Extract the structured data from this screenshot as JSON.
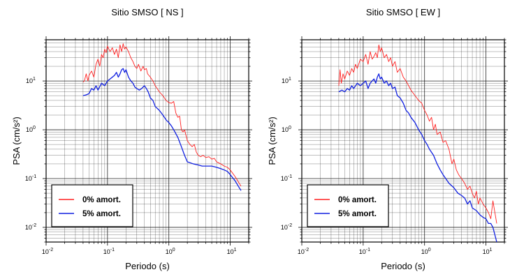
{
  "chart_data": [
    {
      "type": "line",
      "title": "Sitio SMSO [ NS ]",
      "xlabel": "Periodo (s)",
      "ylabel": "PSA (cm/s²)",
      "xscale": "log",
      "yscale": "log",
      "xlim": [
        0.01,
        20
      ],
      "ylim": [
        0.005,
        70
      ],
      "xticks": [
        0.01,
        0.1,
        1,
        10
      ],
      "yticks": [
        0.01,
        0.1,
        1,
        10
      ],
      "grid": true,
      "legend_position": "bottom-left",
      "series": [
        {
          "name": "0% amort.",
          "color": "#ff2020",
          "points": [
            [
              0.04,
              9.5
            ],
            [
              0.042,
              10
            ],
            [
              0.045,
              14
            ],
            [
              0.048,
              10
            ],
            [
              0.05,
              13
            ],
            [
              0.055,
              16
            ],
            [
              0.06,
              12
            ],
            [
              0.065,
              22
            ],
            [
              0.07,
              28
            ],
            [
              0.075,
              20
            ],
            [
              0.08,
              35
            ],
            [
              0.085,
              30
            ],
            [
              0.09,
              45
            ],
            [
              0.095,
              38
            ],
            [
              0.1,
              52
            ],
            [
              0.11,
              40
            ],
            [
              0.12,
              48
            ],
            [
              0.13,
              35
            ],
            [
              0.14,
              45
            ],
            [
              0.15,
              30
            ],
            [
              0.16,
              55
            ],
            [
              0.17,
              40
            ],
            [
              0.18,
              58
            ],
            [
              0.19,
              45
            ],
            [
              0.2,
              50
            ],
            [
              0.22,
              40
            ],
            [
              0.24,
              30
            ],
            [
              0.26,
              25
            ],
            [
              0.28,
              20
            ],
            [
              0.3,
              18
            ],
            [
              0.32,
              22
            ],
            [
              0.35,
              16
            ],
            [
              0.38,
              20
            ],
            [
              0.4,
              17
            ],
            [
              0.43,
              18
            ],
            [
              0.45,
              14
            ],
            [
              0.5,
              12
            ],
            [
              0.55,
              10
            ],
            [
              0.6,
              8
            ],
            [
              0.7,
              6
            ],
            [
              0.8,
              5
            ],
            [
              0.9,
              4
            ],
            [
              1.0,
              3.6
            ],
            [
              1.1,
              3.5
            ],
            [
              1.2,
              3.8
            ],
            [
              1.3,
              2.2
            ],
            [
              1.4,
              1.8
            ],
            [
              1.5,
              1.9
            ],
            [
              1.6,
              1.0
            ],
            [
              1.7,
              0.9
            ],
            [
              1.8,
              1.0
            ],
            [
              2.0,
              0.6
            ],
            [
              2.2,
              0.5
            ],
            [
              2.4,
              0.45
            ],
            [
              2.6,
              0.5
            ],
            [
              2.8,
              0.35
            ],
            [
              3.0,
              0.3
            ],
            [
              3.3,
              0.28
            ],
            [
              3.6,
              0.3
            ],
            [
              4.0,
              0.27
            ],
            [
              4.5,
              0.28
            ],
            [
              5.0,
              0.25
            ],
            [
              5.5,
              0.26
            ],
            [
              6.0,
              0.22
            ],
            [
              7.0,
              0.2
            ],
            [
              8.0,
              0.18
            ],
            [
              9.0,
              0.17
            ],
            [
              10.0,
              0.15
            ],
            [
              12.0,
              0.11
            ],
            [
              14.0,
              0.08
            ],
            [
              15.0,
              0.07
            ]
          ]
        },
        {
          "name": "5% amort.",
          "color": "#1020e0",
          "points": [
            [
              0.04,
              5
            ],
            [
              0.045,
              5.2
            ],
            [
              0.05,
              5.5
            ],
            [
              0.055,
              7
            ],
            [
              0.06,
              6.5
            ],
            [
              0.065,
              8
            ],
            [
              0.07,
              6.5
            ],
            [
              0.08,
              9
            ],
            [
              0.09,
              8
            ],
            [
              0.1,
              10
            ],
            [
              0.11,
              11
            ],
            [
              0.12,
              12
            ],
            [
              0.13,
              13
            ],
            [
              0.14,
              15
            ],
            [
              0.15,
              12
            ],
            [
              0.16,
              14
            ],
            [
              0.17,
              17
            ],
            [
              0.18,
              18
            ],
            [
              0.19,
              15
            ],
            [
              0.2,
              17
            ],
            [
              0.22,
              12
            ],
            [
              0.24,
              10
            ],
            [
              0.26,
              9
            ],
            [
              0.28,
              7.5
            ],
            [
              0.3,
              7
            ],
            [
              0.33,
              6.5
            ],
            [
              0.36,
              7
            ],
            [
              0.4,
              8
            ],
            [
              0.43,
              7
            ],
            [
              0.46,
              6
            ],
            [
              0.5,
              4.5
            ],
            [
              0.55,
              4
            ],
            [
              0.6,
              3
            ],
            [
              0.7,
              2.5
            ],
            [
              0.8,
              2
            ],
            [
              0.9,
              1.6
            ],
            [
              1.0,
              1.4
            ],
            [
              1.1,
              1.2
            ],
            [
              1.2,
              1.0
            ],
            [
              1.4,
              0.7
            ],
            [
              1.6,
              0.45
            ],
            [
              1.8,
              0.3
            ],
            [
              2.0,
              0.22
            ],
            [
              2.5,
              0.2
            ],
            [
              3.0,
              0.19
            ],
            [
              3.5,
              0.18
            ],
            [
              4.0,
              0.18
            ],
            [
              5.0,
              0.18
            ],
            [
              6.0,
              0.17
            ],
            [
              7.0,
              0.16
            ],
            [
              8.0,
              0.15
            ],
            [
              9.0,
              0.14
            ],
            [
              10.0,
              0.12
            ],
            [
              12.0,
              0.09
            ],
            [
              14.0,
              0.065
            ],
            [
              15.0,
              0.057
            ]
          ]
        }
      ]
    },
    {
      "type": "line",
      "title": "Sitio SMSO [ EW ]",
      "xlabel": "Periodo (s)",
      "ylabel": "PSA (cm/s²)",
      "xscale": "log",
      "yscale": "log",
      "xlim": [
        0.01,
        20
      ],
      "ylim": [
        0.005,
        70
      ],
      "xticks": [
        0.01,
        0.1,
        1,
        10
      ],
      "yticks": [
        0.01,
        0.1,
        1,
        10
      ],
      "grid": true,
      "legend_position": "bottom-left",
      "series": [
        {
          "name": "0% amort.",
          "color": "#ff2020",
          "points": [
            [
              0.04,
              8
            ],
            [
              0.042,
              17
            ],
            [
              0.044,
              9
            ],
            [
              0.047,
              14
            ],
            [
              0.05,
              11
            ],
            [
              0.055,
              16
            ],
            [
              0.06,
              13
            ],
            [
              0.065,
              18
            ],
            [
              0.07,
              15
            ],
            [
              0.075,
              22
            ],
            [
              0.08,
              18
            ],
            [
              0.09,
              28
            ],
            [
              0.1,
              25
            ],
            [
              0.11,
              35
            ],
            [
              0.12,
              22
            ],
            [
              0.13,
              40
            ],
            [
              0.14,
              28
            ],
            [
              0.15,
              32
            ],
            [
              0.16,
              38
            ],
            [
              0.17,
              30
            ],
            [
              0.18,
              55
            ],
            [
              0.19,
              40
            ],
            [
              0.2,
              48
            ],
            [
              0.22,
              30
            ],
            [
              0.24,
              35
            ],
            [
              0.26,
              25
            ],
            [
              0.28,
              30
            ],
            [
              0.3,
              20
            ],
            [
              0.33,
              25
            ],
            [
              0.36,
              15
            ],
            [
              0.4,
              18
            ],
            [
              0.45,
              12
            ],
            [
              0.5,
              10
            ],
            [
              0.55,
              8
            ],
            [
              0.6,
              6.5
            ],
            [
              0.7,
              5
            ],
            [
              0.8,
              4
            ],
            [
              0.9,
              3.5
            ],
            [
              1.0,
              2.5
            ],
            [
              1.1,
              2.0
            ],
            [
              1.2,
              1.5
            ],
            [
              1.3,
              1.8
            ],
            [
              1.4,
              1.0
            ],
            [
              1.5,
              1.3
            ],
            [
              1.6,
              0.8
            ],
            [
              1.8,
              0.9
            ],
            [
              2.0,
              0.55
            ],
            [
              2.2,
              0.6
            ],
            [
              2.5,
              0.4
            ],
            [
              2.8,
              0.2
            ],
            [
              3.0,
              0.25
            ],
            [
              3.3,
              0.15
            ],
            [
              3.6,
              0.12
            ],
            [
              4.0,
              0.1
            ],
            [
              4.5,
              0.08
            ],
            [
              5.0,
              0.06
            ],
            [
              5.5,
              0.07
            ],
            [
              6.0,
              0.05
            ],
            [
              6.5,
              0.04
            ],
            [
              7.0,
              0.055
            ],
            [
              7.5,
              0.03
            ],
            [
              8.0,
              0.04
            ],
            [
              9.0,
              0.03
            ],
            [
              10.0,
              0.025
            ],
            [
              11.0,
              0.02
            ],
            [
              12.0,
              0.015
            ],
            [
              13.0,
              0.035
            ],
            [
              14.0,
              0.02
            ],
            [
              15.0,
              0.012
            ]
          ]
        },
        {
          "name": "5% amort.",
          "color": "#1020e0",
          "points": [
            [
              0.04,
              6
            ],
            [
              0.045,
              6.5
            ],
            [
              0.05,
              6
            ],
            [
              0.055,
              7
            ],
            [
              0.06,
              6.5
            ],
            [
              0.065,
              8
            ],
            [
              0.07,
              7
            ],
            [
              0.08,
              9
            ],
            [
              0.09,
              8
            ],
            [
              0.1,
              9
            ],
            [
              0.11,
              10
            ],
            [
              0.12,
              7
            ],
            [
              0.13,
              9
            ],
            [
              0.14,
              10
            ],
            [
              0.15,
              11
            ],
            [
              0.16,
              9
            ],
            [
              0.17,
              12
            ],
            [
              0.18,
              14
            ],
            [
              0.19,
              11
            ],
            [
              0.2,
              12
            ],
            [
              0.22,
              9
            ],
            [
              0.24,
              10
            ],
            [
              0.26,
              8
            ],
            [
              0.28,
              9
            ],
            [
              0.3,
              7
            ],
            [
              0.33,
              7.5
            ],
            [
              0.36,
              5
            ],
            [
              0.4,
              4.5
            ],
            [
              0.45,
              3.5
            ],
            [
              0.5,
              2.5
            ],
            [
              0.55,
              2.2
            ],
            [
              0.6,
              1.8
            ],
            [
              0.7,
              1.4
            ],
            [
              0.8,
              1.0
            ],
            [
              0.9,
              0.8
            ],
            [
              1.0,
              0.6
            ],
            [
              1.1,
              0.5
            ],
            [
              1.2,
              0.4
            ],
            [
              1.4,
              0.3
            ],
            [
              1.6,
              0.2
            ],
            [
              1.8,
              0.15
            ],
            [
              2.0,
              0.12
            ],
            [
              2.5,
              0.08
            ],
            [
              3.0,
              0.065
            ],
            [
              3.5,
              0.05
            ],
            [
              4.0,
              0.045
            ],
            [
              4.5,
              0.04
            ],
            [
              5.0,
              0.03
            ],
            [
              5.5,
              0.035
            ],
            [
              6.0,
              0.025
            ],
            [
              7.0,
              0.022
            ],
            [
              8.0,
              0.018
            ],
            [
              9.0,
              0.016
            ],
            [
              10.0,
              0.015
            ],
            [
              11.0,
              0.012
            ],
            [
              12.0,
              0.012
            ],
            [
              13.0,
              0.01
            ],
            [
              14.0,
              0.007
            ],
            [
              15.0,
              0.005
            ]
          ]
        }
      ]
    }
  ]
}
